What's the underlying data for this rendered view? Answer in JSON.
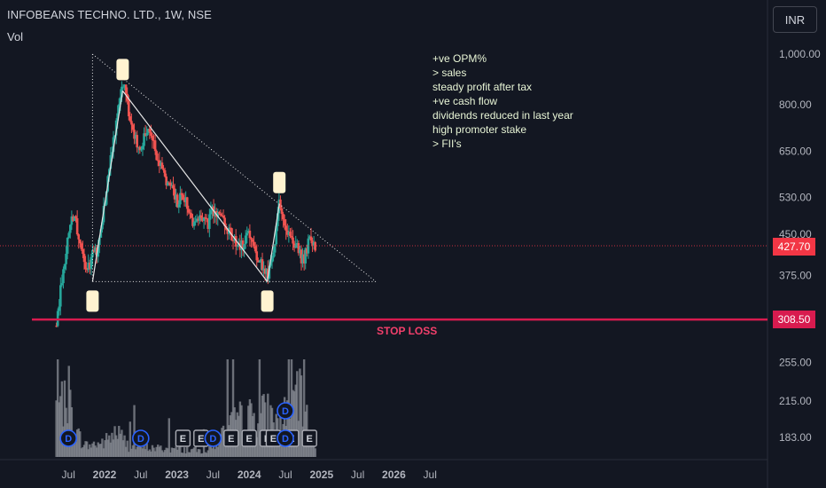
{
  "header": {
    "title": "INFOBEANS TECHNO. LTD., 1W, NSE",
    "volume_label": "Vol"
  },
  "toolbar": {
    "currency": "INR"
  },
  "price_axis": {
    "ticks": [
      "1,000.00",
      "800.00",
      "650.00",
      "530.00",
      "450.00",
      "375.00",
      "255.00",
      "215.00",
      "183.00"
    ]
  },
  "time_axis": {
    "ticks": [
      "Jul",
      "2022",
      "Jul",
      "2023",
      "Jul",
      "2024",
      "Jul",
      "2025",
      "Jul",
      "2026",
      "Jul"
    ]
  },
  "badges": {
    "current_price": "427.70",
    "stop_loss_price": "308.50"
  },
  "annotation": {
    "lines": [
      "+ve OPM%",
      "> sales",
      "steady profit after tax",
      "+ve cash flow",
      "dividends reduced in last year",
      "high promoter stake",
      "> FII's"
    ]
  },
  "stop_loss": {
    "label": "STOP LOSS"
  },
  "events": {
    "dividend_label": "D",
    "earnings_label": "E"
  },
  "colors": {
    "background": "#131722",
    "up": "#26a69a",
    "down": "#ef5350",
    "stop_line": "#d81b4f",
    "current_price": "#f23645",
    "marker": "#fff3d0"
  },
  "chart_data": {
    "type": "candlestick",
    "title": "INFOBEANS TECHNO. LTD., 1W, NSE",
    "scale": "log",
    "current_price": 427.7,
    "stop_loss": 308.5,
    "period_start": "2021-07",
    "period_end": "2024-12",
    "price_path": [
      [
        "2021-05",
        300
      ],
      [
        "2021-07",
        450
      ],
      [
        "2021-08",
        500
      ],
      [
        "2021-09",
        420
      ],
      [
        "2021-10",
        375
      ],
      [
        "2021-11",
        410
      ],
      [
        "2021-12",
        420
      ],
      [
        "2022-01",
        520
      ],
      [
        "2022-02",
        620
      ],
      [
        "2022-03",
        760
      ],
      [
        "2022-04",
        880
      ],
      [
        "2022-05",
        780
      ],
      [
        "2022-06",
        700
      ],
      [
        "2022-07",
        650
      ],
      [
        "2022-08",
        720
      ],
      [
        "2022-09",
        680
      ],
      [
        "2022-10",
        620
      ],
      [
        "2022-11",
        580
      ],
      [
        "2022-12",
        560
      ],
      [
        "2023-01",
        520
      ],
      [
        "2023-02",
        540
      ],
      [
        "2023-03",
        500
      ],
      [
        "2023-04",
        470
      ],
      [
        "2023-05",
        480
      ],
      [
        "2023-06",
        470
      ],
      [
        "2023-07",
        500
      ],
      [
        "2023-08",
        490
      ],
      [
        "2023-09",
        470
      ],
      [
        "2023-10",
        450
      ],
      [
        "2023-11",
        425
      ],
      [
        "2023-12",
        430
      ],
      [
        "2024-01",
        455
      ],
      [
        "2024-02",
        420
      ],
      [
        "2024-03",
        395
      ],
      [
        "2024-04",
        375
      ],
      [
        "2024-05",
        410
      ],
      [
        "2024-06",
        515
      ],
      [
        "2024-07",
        460
      ],
      [
        "2024-08",
        445
      ],
      [
        "2024-09",
        420
      ],
      [
        "2024-10",
        400
      ],
      [
        "2024-11",
        440
      ],
      [
        "2024-12",
        427.7
      ]
    ],
    "volume_profile": [
      [
        "2021-05",
        0.7
      ],
      [
        "2021-06",
        0.55
      ],
      [
        "2021-07",
        0.9
      ],
      [
        "2021-08",
        0.35
      ],
      [
        "2021-10",
        0.15
      ],
      [
        "2022-01",
        0.2
      ],
      [
        "2022-03",
        0.35
      ],
      [
        "2022-05",
        0.15
      ],
      [
        "2022-09",
        0.12
      ],
      [
        "2023-03",
        0.1
      ],
      [
        "2023-06",
        0.08
      ],
      [
        "2023-11",
        0.5
      ],
      [
        "2024-04",
        0.6
      ],
      [
        "2024-06",
        0.45
      ],
      [
        "2024-09",
        0.9
      ],
      [
        "2024-12",
        0.1
      ]
    ],
    "trendlines": [
      {
        "from": [
          "2021-11",
          1000
        ],
        "to": [
          "2025-10",
          365
        ],
        "style": "dotted"
      },
      {
        "from": [
          "2021-11",
          365
        ],
        "to": [
          "2025-10",
          365
        ],
        "style": "dotted"
      },
      {
        "from": [
          "2021-11",
          1000
        ],
        "to": [
          "2021-11",
          365
        ],
        "style": "dotted"
      },
      {
        "from": [
          "2021-11",
          365
        ],
        "to": [
          "2022-04",
          850
        ],
        "style": "solid"
      },
      {
        "from": [
          "2022-04",
          850
        ],
        "to": [
          "2024-04",
          365
        ],
        "style": "solid"
      },
      {
        "from": [
          "2024-04",
          365
        ],
        "to": [
          "2024-06",
          515
        ],
        "style": "solid"
      }
    ],
    "pivot_markers": [
      [
        "2021-11",
        365
      ],
      [
        "2022-04",
        850
      ],
      [
        "2024-04",
        365
      ],
      [
        "2024-06",
        515
      ]
    ],
    "events": {
      "dividend": [
        "2021-07",
        "2022-07",
        "2023-07",
        "2024-07"
      ],
      "dividend_raised": [
        "2024-07"
      ],
      "earnings": [
        "2023-02",
        "2023-05",
        "2023-10",
        "2024-01",
        "2024-04",
        "2024-05",
        "2024-08",
        "2024-11"
      ]
    }
  }
}
